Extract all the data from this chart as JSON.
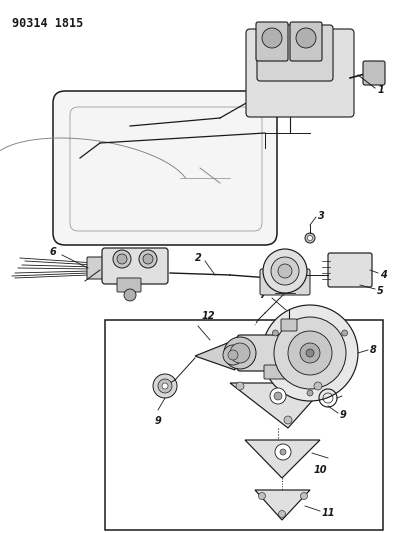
{
  "title_code": "90314 1815",
  "bg_color": "#ffffff",
  "line_color": "#1a1a1a",
  "fig_width": 3.98,
  "fig_height": 5.33,
  "dpi": 100,
  "title_fontsize": 8.5,
  "label_fontsize": 7,
  "label_fontsize_small": 6.5
}
